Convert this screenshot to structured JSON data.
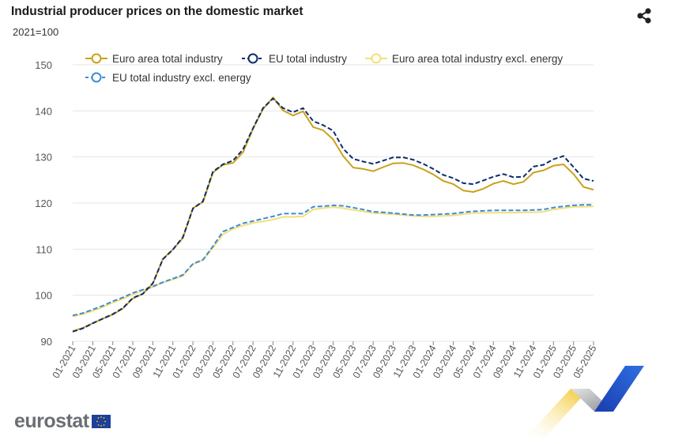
{
  "header": {
    "title": "Industrial producer prices on the domestic market",
    "subtitle": "2021=100",
    "share_icon": "share-icon"
  },
  "branding": {
    "logo_text": "eurostat",
    "flag_icon": "eu-flag-icon"
  },
  "colors": {
    "euro_area": "#c9a21b",
    "eu": "#0e2c69",
    "euro_area_excl": "#f3e07a",
    "eu_excl": "#3d8bd6",
    "grid": "#e5e5e5"
  },
  "chart_data": {
    "type": "line",
    "title": "Industrial producer prices on the domestic market",
    "ylabel": "2021=100",
    "ylim": [
      90,
      150
    ],
    "yticks": [
      90,
      100,
      110,
      120,
      130,
      140,
      150
    ],
    "x": [
      "01-2021",
      "02-2021",
      "03-2021",
      "04-2021",
      "05-2021",
      "06-2021",
      "07-2021",
      "08-2021",
      "09-2021",
      "10-2021",
      "11-2021",
      "12-2021",
      "01-2022",
      "02-2022",
      "03-2022",
      "04-2022",
      "05-2022",
      "06-2022",
      "07-2022",
      "08-2022",
      "09-2022",
      "10-2022",
      "11-2022",
      "12-2022",
      "01-2023",
      "02-2023",
      "03-2023",
      "04-2023",
      "05-2023",
      "06-2023",
      "07-2023",
      "08-2023",
      "09-2023",
      "10-2023",
      "11-2023",
      "12-2023",
      "01-2024",
      "02-2024",
      "03-2024",
      "04-2024",
      "05-2024",
      "06-2024",
      "07-2024",
      "08-2024",
      "09-2024",
      "10-2024",
      "11-2024",
      "12-2024",
      "01-2025",
      "02-2025",
      "03-2025",
      "04-2025",
      "05-2025"
    ],
    "xticklabels": [
      "01-2021",
      "03-2021",
      "05-2021",
      "07-2021",
      "09-2021",
      "11-2021",
      "01-2022",
      "03-2022",
      "05-2022",
      "07-2022",
      "09-2022",
      "11-2022",
      "01-2023",
      "03-2023",
      "05-2023",
      "07-2023",
      "09-2023",
      "11-2023",
      "01-2024",
      "03-2024",
      "05-2024",
      "07-2024",
      "09-2024",
      "11-2024",
      "01-2025",
      "03-2025",
      "05-2025"
    ],
    "grid": true,
    "legend_position": "top",
    "series": [
      {
        "name": "Euro area total industry",
        "style": "solid",
        "values": [
          92.2,
          92.9,
          93.9,
          94.9,
          95.8,
          97.1,
          99.3,
          100.3,
          102.5,
          107.9,
          109.9,
          112.4,
          118.9,
          120.2,
          126.6,
          128.3,
          128.7,
          131.0,
          136.1,
          140.4,
          142.9,
          140.1,
          139.0,
          139.9,
          136.5,
          135.8,
          133.8,
          130.2,
          127.7,
          127.4,
          126.9,
          127.8,
          128.6,
          128.7,
          128.2,
          127.3,
          126.2,
          124.8,
          124.1,
          122.7,
          122.4,
          123.1,
          124.2,
          124.8,
          124.1,
          124.6,
          126.6,
          127.1,
          128.1,
          128.4,
          126.3,
          123.5,
          122.9
        ]
      },
      {
        "name": "EU total industry",
        "style": "dashed",
        "values": [
          92.1,
          92.8,
          93.9,
          94.9,
          95.9,
          97.2,
          99.4,
          100.3,
          102.6,
          107.8,
          109.9,
          112.6,
          118.8,
          120.4,
          126.8,
          128.4,
          129.2,
          131.6,
          136.2,
          140.6,
          142.7,
          140.6,
          139.7,
          140.6,
          137.8,
          136.9,
          135.7,
          131.8,
          129.6,
          129.0,
          128.5,
          129.2,
          129.9,
          129.9,
          129.4,
          128.5,
          127.4,
          126.1,
          125.4,
          124.3,
          124.1,
          124.9,
          125.7,
          126.3,
          125.6,
          125.7,
          127.9,
          128.3,
          129.5,
          130.2,
          127.8,
          125.3,
          124.8
        ]
      },
      {
        "name": "Euro area total industry excl. energy",
        "style": "solid",
        "values": [
          95.4,
          95.9,
          96.6,
          97.4,
          98.4,
          99.2,
          100.2,
          101.0,
          101.8,
          102.8,
          103.4,
          104.2,
          106.7,
          107.6,
          110.3,
          113.2,
          114.4,
          115.1,
          115.7,
          116.0,
          116.4,
          117.0,
          117.0,
          117.1,
          118.6,
          118.9,
          119.1,
          118.9,
          118.5,
          118.2,
          117.8,
          117.7,
          117.6,
          117.4,
          117.2,
          117.1,
          117.1,
          117.2,
          117.3,
          117.6,
          117.8,
          117.9,
          117.9,
          117.9,
          117.9,
          118.0,
          118.0,
          118.1,
          118.6,
          118.9,
          119.2,
          119.2,
          119.3
        ]
      },
      {
        "name": "EU total industry excl. energy",
        "style": "dashed",
        "values": [
          95.6,
          96.1,
          96.9,
          97.7,
          98.7,
          99.5,
          100.5,
          101.2,
          101.9,
          102.8,
          103.6,
          104.4,
          106.8,
          107.7,
          110.6,
          113.8,
          114.7,
          115.6,
          116.1,
          116.6,
          117.1,
          117.7,
          117.7,
          117.7,
          119.2,
          119.3,
          119.5,
          119.4,
          119.0,
          118.6,
          118.1,
          118.0,
          117.8,
          117.6,
          117.4,
          117.4,
          117.5,
          117.6,
          117.7,
          118.0,
          118.2,
          118.3,
          118.4,
          118.4,
          118.4,
          118.4,
          118.5,
          118.6,
          119.0,
          119.3,
          119.5,
          119.6,
          119.6
        ]
      }
    ]
  }
}
